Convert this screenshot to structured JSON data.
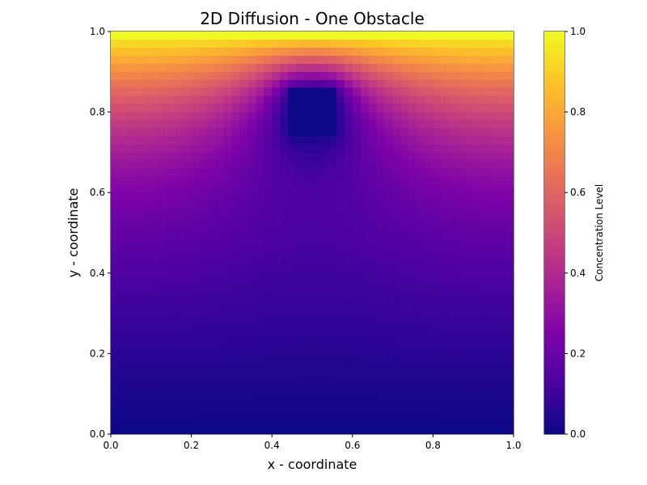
{
  "chart_data": {
    "type": "heatmap",
    "title": "2D Diffusion - One Obstacle",
    "xlabel": "x - coordinate",
    "ylabel": "y - coordinate",
    "xlim": [
      0.0,
      1.0
    ],
    "ylim": [
      0.0,
      1.0
    ],
    "x_ticks": [
      "0.0",
      "0.2",
      "0.4",
      "0.6",
      "0.8",
      "1.0"
    ],
    "y_ticks": [
      "0.0",
      "0.2",
      "0.4",
      "0.6",
      "0.8",
      "1.0"
    ],
    "colormap": "plasma",
    "colorbar": {
      "label": "Concentration Level",
      "range": [
        0.0,
        1.0
      ],
      "ticks": [
        "0.0",
        "0.2",
        "0.4",
        "0.6",
        "0.8",
        "1.0"
      ]
    },
    "obstacle": {
      "x_range": [
        0.45,
        0.56
      ],
      "y_range": [
        0.74,
        0.85
      ],
      "value": 0.0
    },
    "boundary": {
      "top_value": 1.0,
      "bottom_value": 0.0
    },
    "grid_resolution": 50,
    "grid": false
  }
}
